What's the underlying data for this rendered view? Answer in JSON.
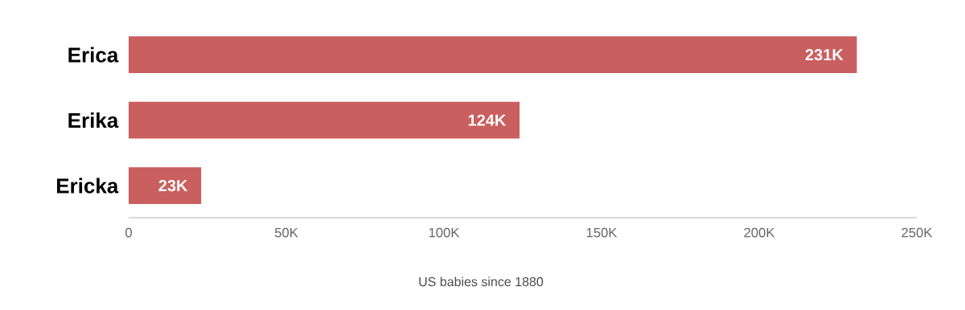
{
  "chart_data": {
    "type": "bar",
    "orientation": "horizontal",
    "categories": [
      "Erica",
      "Erika",
      "Ericka"
    ],
    "values": [
      231000,
      124000,
      23000
    ],
    "value_labels": [
      "231K",
      "124K",
      "23K"
    ],
    "color": "#c95f5e",
    "xlim": [
      0,
      250000
    ],
    "xticks": [
      0,
      {
        "value": 50000,
        "label": "50K"
      },
      {
        "value": 100000,
        "label": "100K"
      },
      {
        "value": 150000,
        "label": "150K"
      },
      {
        "value": 200000,
        "label": "200K"
      },
      {
        "value": 250000,
        "label": "250K"
      }
    ],
    "xlabel": "US babies since 1880"
  }
}
